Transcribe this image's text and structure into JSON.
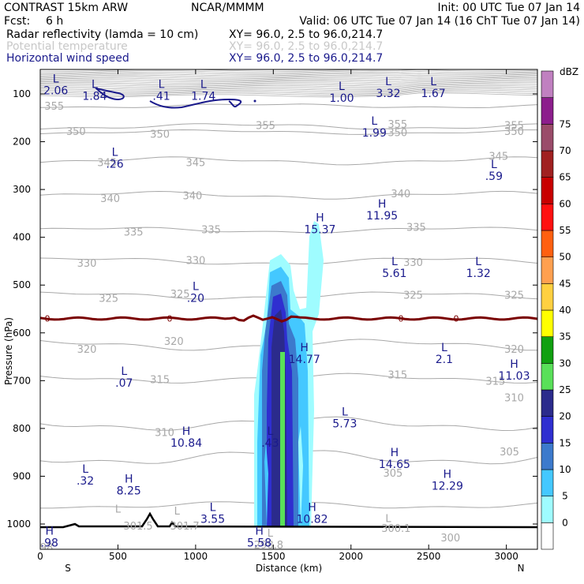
{
  "header": {
    "model": "CONTRAST 15km ARW",
    "institution": "NCAR/MMMM",
    "init": "Init: 00 UTC Tue 07 Jan 14",
    "fcst_label": "Fcst:",
    "fcst_value": "6 h",
    "valid": "Valid: 06 UTC Tue 07 Jan 14 (16 ChT Tue 07 Jan 14)",
    "field1_name": "Radar reflectivity (lamda = 10 cm)",
    "field1_xy": "XY=  96.0,  2.5 to  96.0,214.7",
    "field2_name": "Potential temperature",
    "field2_xy": "XY=  96.0,  2.5 to  96.0,214.7",
    "field3_name": "Horizontal wind speed",
    "field3_xy": "XY=  96.0,  2.5 to  96.0,214.7"
  },
  "colors": {
    "field2_text": "#c8c8c8",
    "field3_text": "#1a1a8c",
    "theta_contour": "#a8a8a8",
    "zero_line": "#7a0000",
    "terrain": "#000000"
  },
  "chart_data": {
    "type": "cross-section",
    "xlabel": "Distance (km)",
    "ylabel": "Pressure (hPa)",
    "x_ticks": [
      0,
      500,
      1000,
      1500,
      2000,
      2500,
      3000
    ],
    "y_ticks": [
      100,
      200,
      300,
      400,
      500,
      600,
      700,
      800,
      900,
      1000
    ],
    "xlim": [
      0,
      3200
    ],
    "ylim_hPa": [
      1050,
      60
    ],
    "left_end_label": "S",
    "right_end_label": "N",
    "colorbar": {
      "unit": "dBZ",
      "levels": [
        0,
        5,
        10,
        15,
        20,
        25,
        30,
        35,
        40,
        45,
        50,
        55,
        60,
        65,
        70,
        75
      ],
      "colors": [
        "#ffffff",
        "#9ffcff",
        "#44c8ff",
        "#3c7acc",
        "#2f2fd0",
        "#2b2b8c",
        "#59e059",
        "#10a010",
        "#ffff00",
        "#ffd040",
        "#ffa050",
        "#ff6010",
        "#ff1010",
        "#c80000",
        "#a02020",
        "#9a4c6a",
        "#8c1e8c",
        "#c080c0"
      ]
    },
    "theta_contour_labels": [
      {
        "text": "355",
        "x": 90,
        "p": 125
      },
      {
        "text": "355",
        "x": 1450,
        "p": 165
      },
      {
        "text": "355",
        "x": 2300,
        "p": 163
      },
      {
        "text": "355",
        "x": 3050,
        "p": 165
      },
      {
        "text": "350",
        "x": 230,
        "p": 178
      },
      {
        "text": "350",
        "x": 770,
        "p": 183
      },
      {
        "text": "350",
        "x": 2300,
        "p": 180
      },
      {
        "text": "350",
        "x": 3050,
        "p": 178
      },
      {
        "text": "345",
        "x": 430,
        "p": 243
      },
      {
        "text": "345",
        "x": 1000,
        "p": 243
      },
      {
        "text": "345",
        "x": 2950,
        "p": 230
      },
      {
        "text": "340",
        "x": 450,
        "p": 318
      },
      {
        "text": "340",
        "x": 980,
        "p": 312
      },
      {
        "text": "340",
        "x": 2320,
        "p": 308
      },
      {
        "text": "335",
        "x": 600,
        "p": 388
      },
      {
        "text": "335",
        "x": 1100,
        "p": 383
      },
      {
        "text": "335",
        "x": 2420,
        "p": 378
      },
      {
        "text": "330",
        "x": 300,
        "p": 453
      },
      {
        "text": "330",
        "x": 1000,
        "p": 448
      },
      {
        "text": "330",
        "x": 2400,
        "p": 452
      },
      {
        "text": "325",
        "x": 440,
        "p": 527
      },
      {
        "text": "325",
        "x": 900,
        "p": 518
      },
      {
        "text": "325",
        "x": 2400,
        "p": 520
      },
      {
        "text": "325",
        "x": 3050,
        "p": 520
      },
      {
        "text": "320",
        "x": 300,
        "p": 633
      },
      {
        "text": "320",
        "x": 860,
        "p": 617
      },
      {
        "text": "320",
        "x": 3050,
        "p": 633
      },
      {
        "text": "315",
        "x": 770,
        "p": 697
      },
      {
        "text": "315",
        "x": 2300,
        "p": 687
      },
      {
        "text": "315",
        "x": 2930,
        "p": 700
      },
      {
        "text": "310",
        "x": 800,
        "p": 808
      },
      {
        "text": "310",
        "x": 3050,
        "p": 735
      },
      {
        "text": "305",
        "x": 3020,
        "p": 848
      },
      {
        "text": "305",
        "x": 2270,
        "p": 893
      },
      {
        "text": "301.5",
        "x": 630,
        "p": 1003
      },
      {
        "text": "301.7",
        "x": 930,
        "p": 1003
      },
      {
        "text": "298.8",
        "x": 1470,
        "p": 1043
      },
      {
        "text": "300.1",
        "x": 2290,
        "p": 1008
      },
      {
        "text": "300",
        "x": 2640,
        "p": 1028
      },
      {
        "text": "298",
        "x": 20,
        "p": 1048
      }
    ],
    "theta_minmax_letters": [
      {
        "text": "L",
        "x": 500,
        "p": 968
      },
      {
        "text": "L",
        "x": 880,
        "p": 972
      },
      {
        "text": "L",
        "x": 1480,
        "p": 1018
      },
      {
        "text": "L",
        "x": 2240,
        "p": 988
      }
    ],
    "wind_extrema": [
      {
        "letter": "L",
        "value": "2.06",
        "x": 100,
        "p": 76
      },
      {
        "letter": "L",
        "value": "1.84",
        "x": 350,
        "p": 88
      },
      {
        "letter": "L",
        "value": ".41",
        "x": 780,
        "p": 88
      },
      {
        "letter": "L",
        "value": "1.74",
        "x": 1050,
        "p": 88
      },
      {
        "letter": "L",
        "value": "1.00",
        "x": 1940,
        "p": 92
      },
      {
        "letter": "L",
        "value": "3.32",
        "x": 2240,
        "p": 82
      },
      {
        "letter": "L",
        "value": "1.67",
        "x": 2530,
        "p": 82
      },
      {
        "letter": "L",
        "value": "1.99",
        "x": 2150,
        "p": 164
      },
      {
        "letter": "L",
        "value": ".26",
        "x": 480,
        "p": 230
      },
      {
        "letter": "L",
        "value": ".59",
        "x": 2920,
        "p": 255
      },
      {
        "letter": "H",
        "value": "11.95",
        "x": 2200,
        "p": 338
      },
      {
        "letter": "H",
        "value": "15.37",
        "x": 1800,
        "p": 367
      },
      {
        "letter": "L",
        "value": "5.61",
        "x": 2280,
        "p": 458
      },
      {
        "letter": "L",
        "value": "1.32",
        "x": 2820,
        "p": 458
      },
      {
        "letter": "L",
        "value": ".20",
        "x": 1000,
        "p": 510
      },
      {
        "letter": "H",
        "value": "14.77",
        "x": 1700,
        "p": 638
      },
      {
        "letter": "L",
        "value": "2.1",
        "x": 2600,
        "p": 638
      },
      {
        "letter": "H",
        "value": "11.03",
        "x": 3050,
        "p": 673
      },
      {
        "letter": "L",
        "value": ".07",
        "x": 540,
        "p": 688
      },
      {
        "letter": "L",
        "value": "5.73",
        "x": 1960,
        "p": 773
      },
      {
        "letter": "H",
        "value": "10.84",
        "x": 940,
        "p": 813
      },
      {
        "letter": "L",
        "value": ".43",
        "x": 1480,
        "p": 813
      },
      {
        "letter": "H",
        "value": "14.65",
        "x": 2280,
        "p": 858
      },
      {
        "letter": "L",
        "value": ".32",
        "x": 290,
        "p": 893
      },
      {
        "letter": "H",
        "value": "8.25",
        "x": 570,
        "p": 913
      },
      {
        "letter": "H",
        "value": "12.29",
        "x": 2620,
        "p": 903
      },
      {
        "letter": "L",
        "value": "3.55",
        "x": 1110,
        "p": 973
      },
      {
        "letter": "H",
        "value": "10.82",
        "x": 1750,
        "p": 973
      },
      {
        "letter": "H",
        "value": ".98",
        "x": 60,
        "p": 1022
      },
      {
        "letter": "H",
        "value": "5.58",
        "x": 1410,
        "p": 1022
      }
    ],
    "zero_contour_label": "0",
    "zero_contour_p": 570
  }
}
